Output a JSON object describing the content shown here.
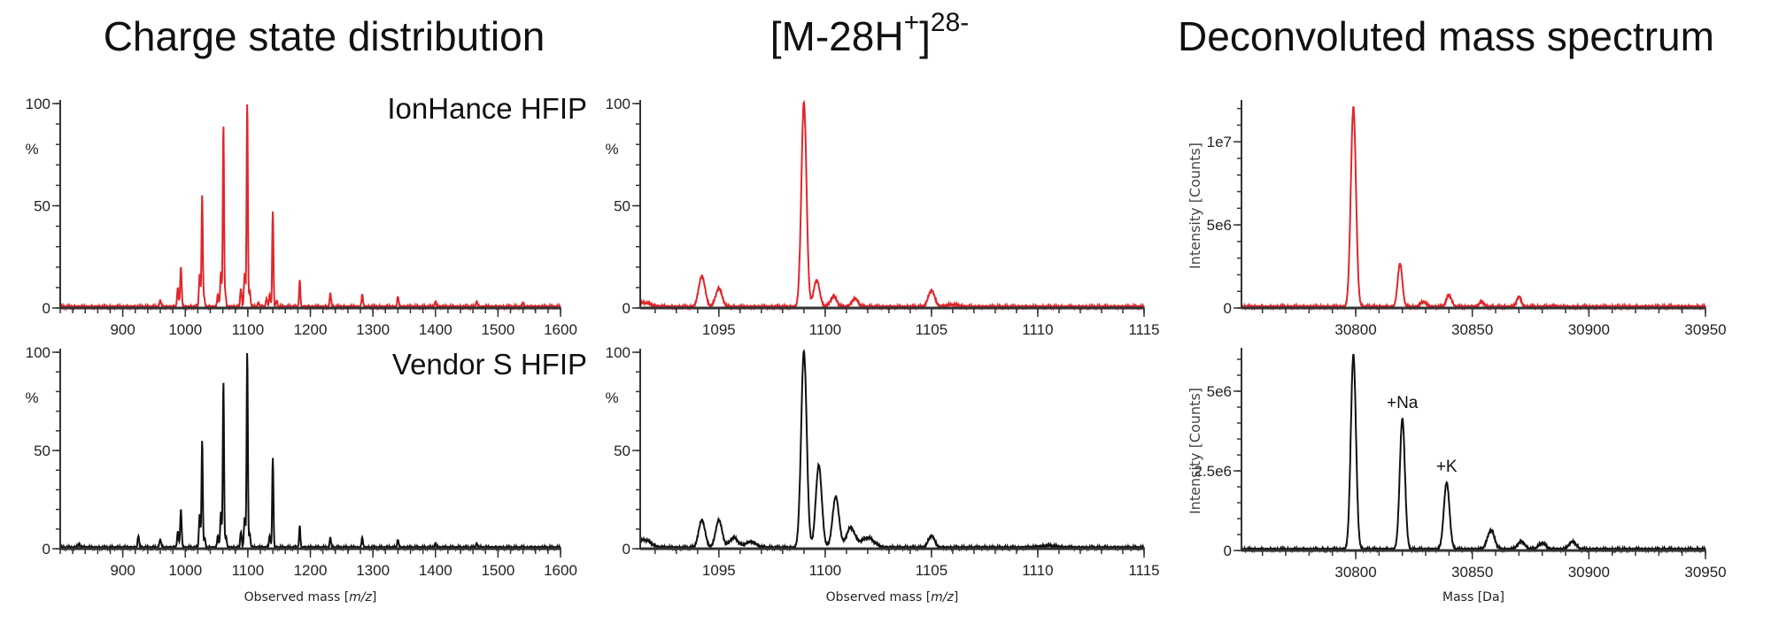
{
  "titles": {
    "left": "Charge state distribution",
    "middle": {
      "pre": "[M-28H",
      "sup1": "+",
      "mid": "]",
      "sup2": "28-"
    },
    "right": "Deconvoluted mass spectrum"
  },
  "colors": {
    "ionhance": "#e0262b",
    "vendor": "#111111",
    "axis": "#333333"
  },
  "chart_data": [
    {
      "id": "charge-ionhance",
      "type": "line",
      "label": "IonHance HFIP",
      "color": "#e0262b",
      "xlim": [
        800,
        1600
      ],
      "ylim": [
        0,
        100
      ],
      "ylabel": "%",
      "xticks": [
        "900",
        "1000",
        "1100",
        "1200",
        "1300",
        "1400",
        "1500",
        "1600"
      ],
      "yticks": [
        "0",
        "50",
        "100"
      ],
      "peaks": [
        [
          960,
          3,
          1.5
        ],
        [
          988,
          9,
          1.2
        ],
        [
          993,
          19,
          1.2
        ],
        [
          1023,
          16,
          1.2
        ],
        [
          1027,
          55,
          1.0
        ],
        [
          1030,
          5,
          1.2
        ],
        [
          1052,
          6,
          1.2
        ],
        [
          1057,
          17,
          1.2
        ],
        [
          1061,
          89,
          1.0
        ],
        [
          1064,
          6,
          1.2
        ],
        [
          1089,
          9,
          1.2
        ],
        [
          1095,
          16,
          1.2
        ],
        [
          1099,
          100,
          1.0
        ],
        [
          1103,
          8,
          1.2
        ],
        [
          1117,
          2,
          1.2
        ],
        [
          1130,
          4,
          1.2
        ],
        [
          1135,
          6,
          1.2
        ],
        [
          1140,
          47,
          1.0
        ],
        [
          1146,
          3,
          1.2
        ],
        [
          1183,
          13,
          1.0
        ],
        [
          1232,
          6.5,
          1.2
        ],
        [
          1283,
          6,
          1.2
        ],
        [
          1340,
          5,
          1.2
        ],
        [
          1400,
          2.5,
          1.2
        ],
        [
          1466,
          2.5,
          1.2
        ],
        [
          1540,
          2,
          1.2
        ]
      ]
    },
    {
      "id": "charge-vendor",
      "type": "line",
      "label": "Vendor S HFIP",
      "color": "#111111",
      "xlim": [
        800,
        1600
      ],
      "ylim": [
        0,
        100
      ],
      "ylabel": "%",
      "xlabel": {
        "pre": "Observed mass [",
        "it": "m/z",
        "post": "]"
      },
      "xticks": [
        "900",
        "1000",
        "1100",
        "1200",
        "1300",
        "1400",
        "1500",
        "1600"
      ],
      "yticks": [
        "0",
        "50",
        "100"
      ],
      "peaks": [
        [
          830,
          2,
          1.5
        ],
        [
          925,
          6,
          1.2
        ],
        [
          960,
          4,
          1.5
        ],
        [
          988,
          8,
          1.2
        ],
        [
          993,
          19,
          1.2
        ],
        [
          1023,
          17,
          1.2
        ],
        [
          1027,
          55,
          1.0
        ],
        [
          1031,
          5,
          1.2
        ],
        [
          1052,
          6,
          1.2
        ],
        [
          1057,
          18,
          1.2
        ],
        [
          1061,
          85,
          1.0
        ],
        [
          1065,
          6,
          1.2
        ],
        [
          1089,
          8,
          1.2
        ],
        [
          1095,
          15,
          1.2
        ],
        [
          1099,
          100,
          1.0
        ],
        [
          1103,
          7,
          1.2
        ],
        [
          1135,
          6,
          1.2
        ],
        [
          1140,
          46,
          1.0
        ],
        [
          1183,
          11,
          1.0
        ],
        [
          1232,
          5,
          1.2
        ],
        [
          1283,
          5,
          1.2
        ],
        [
          1340,
          4,
          1.2
        ],
        [
          1400,
          2,
          1.2
        ],
        [
          1466,
          2,
          1.2
        ]
      ]
    },
    {
      "id": "zoom-ionhance",
      "type": "line",
      "color": "#e0262b",
      "xlim": [
        1091.3,
        1115
      ],
      "ylim": [
        0,
        100
      ],
      "ylabel": "%",
      "xticks": [
        "1095",
        "1100",
        "1105",
        "1110",
        "1115"
      ],
      "yticks": [
        "0",
        "50",
        "100"
      ],
      "peaks": [
        [
          1091.5,
          2,
          0.3
        ],
        [
          1094.2,
          15,
          0.15
        ],
        [
          1095.0,
          9,
          0.15
        ],
        [
          1099.0,
          100,
          0.12
        ],
        [
          1099.6,
          13,
          0.14
        ],
        [
          1100.4,
          5,
          0.15
        ],
        [
          1101.4,
          4,
          0.15
        ],
        [
          1105.0,
          8,
          0.15
        ],
        [
          1106.0,
          1,
          0.3
        ]
      ]
    },
    {
      "id": "zoom-vendor",
      "type": "line",
      "color": "#111111",
      "xlim": [
        1091.3,
        1115
      ],
      "ylim": [
        0,
        100
      ],
      "ylabel": "%",
      "xlabel": {
        "pre": "Observed mass [",
        "it": "m/z",
        "post": "]"
      },
      "xticks": [
        "1095",
        "1100",
        "1105",
        "1110",
        "1115"
      ],
      "yticks": [
        "0",
        "50",
        "100"
      ],
      "peaks": [
        [
          1091.5,
          4,
          0.3
        ],
        [
          1094.2,
          14,
          0.15
        ],
        [
          1095.0,
          14,
          0.15
        ],
        [
          1095.7,
          5,
          0.2
        ],
        [
          1096.5,
          3,
          0.25
        ],
        [
          1099.0,
          100,
          0.13
        ],
        [
          1099.7,
          42,
          0.14
        ],
        [
          1100.5,
          26,
          0.15
        ],
        [
          1101.2,
          10,
          0.2
        ],
        [
          1102.0,
          5,
          0.3
        ],
        [
          1105.0,
          6,
          0.15
        ],
        [
          1110.5,
          1,
          0.4
        ]
      ]
    },
    {
      "id": "deconv-ionhance",
      "type": "line",
      "color": "#e0262b",
      "xlim": [
        30751,
        30950
      ],
      "ylim": [
        0,
        12300000
      ],
      "ylabel": "Intensity [Counts]",
      "xticks": [
        "30800",
        "30850",
        "30900",
        "30950"
      ],
      "yticks": [
        "0",
        "5e6",
        "1e7"
      ],
      "peaks": [
        [
          30799,
          12000000,
          1.1
        ],
        [
          30819,
          2600000,
          1.0
        ],
        [
          30829,
          300000,
          1.2
        ],
        [
          30840,
          700000,
          1.1
        ],
        [
          30854,
          300000,
          1.1
        ],
        [
          30870,
          600000,
          1.0
        ],
        [
          30885,
          50000,
          1.2
        ]
      ]
    },
    {
      "id": "deconv-vendor",
      "type": "line",
      "color": "#111111",
      "xlim": [
        30751,
        30950
      ],
      "ylim": [
        0,
        6250000
      ],
      "ylabel": "Intensity [Counts]",
      "xlabel": {
        "pre": "Mass [Da]",
        "it": "",
        "post": ""
      },
      "xticks": [
        "30800",
        "30850",
        "30900",
        "30950"
      ],
      "yticks": [
        "0",
        "2.5e6",
        "5e6"
      ],
      "peaks": [
        [
          30799,
          6100000,
          1.1
        ],
        [
          30820,
          4100000,
          1.1
        ],
        [
          30839,
          2100000,
          1.2
        ],
        [
          30858,
          600000,
          1.5
        ],
        [
          30871,
          250000,
          1.5
        ],
        [
          30880,
          200000,
          1.5
        ],
        [
          30893,
          250000,
          1.5
        ]
      ],
      "annotations": [
        {
          "text": "+Na",
          "x": 30820,
          "y": 4250000
        },
        {
          "text": "+K",
          "x": 30839,
          "y": 2250000
        }
      ]
    }
  ]
}
